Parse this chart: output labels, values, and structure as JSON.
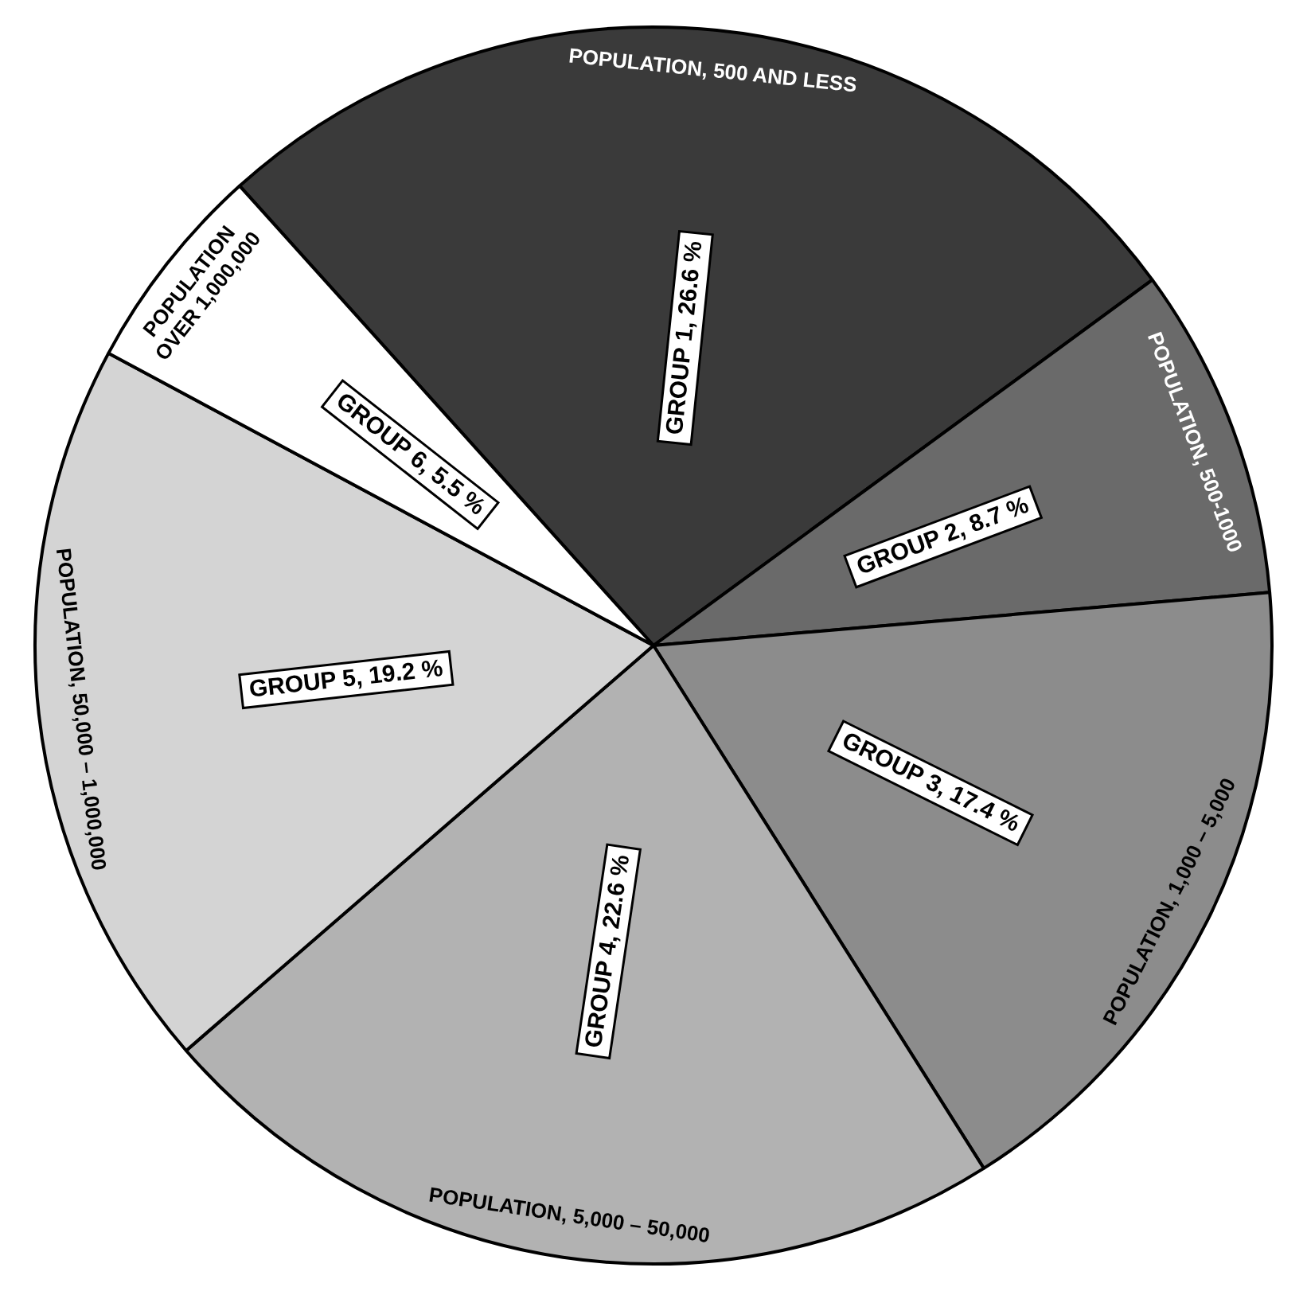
{
  "chart_data": {
    "type": "pie",
    "categories": [
      "POPULATION, 500 AND LESS",
      "POPULATION, 500-1000",
      "POPULATION, 1,000 – 5,000",
      "POPULATION, 5,000 – 50,000",
      "POPULATION, 50,000 – 1,000,000",
      "POPULATION OVER 1,000,000"
    ],
    "values": [
      26.6,
      8.7,
      17.4,
      22.6,
      19.2,
      5.5
    ],
    "colors": [
      "#3a3a3a",
      "#6a6a6a",
      "#8c8c8c",
      "#b2b2b2",
      "#d4d4d4",
      "#ffffff"
    ],
    "value_labels": [
      "GROUP 1, 26.6 %",
      "GROUP 2, 8.7 %",
      "GROUP 3, 17.4 %",
      "GROUP 4, 22.6 %",
      "GROUP 5, 19.2 %",
      "GROUP 6, 5.5 %"
    ],
    "legend": false
  }
}
